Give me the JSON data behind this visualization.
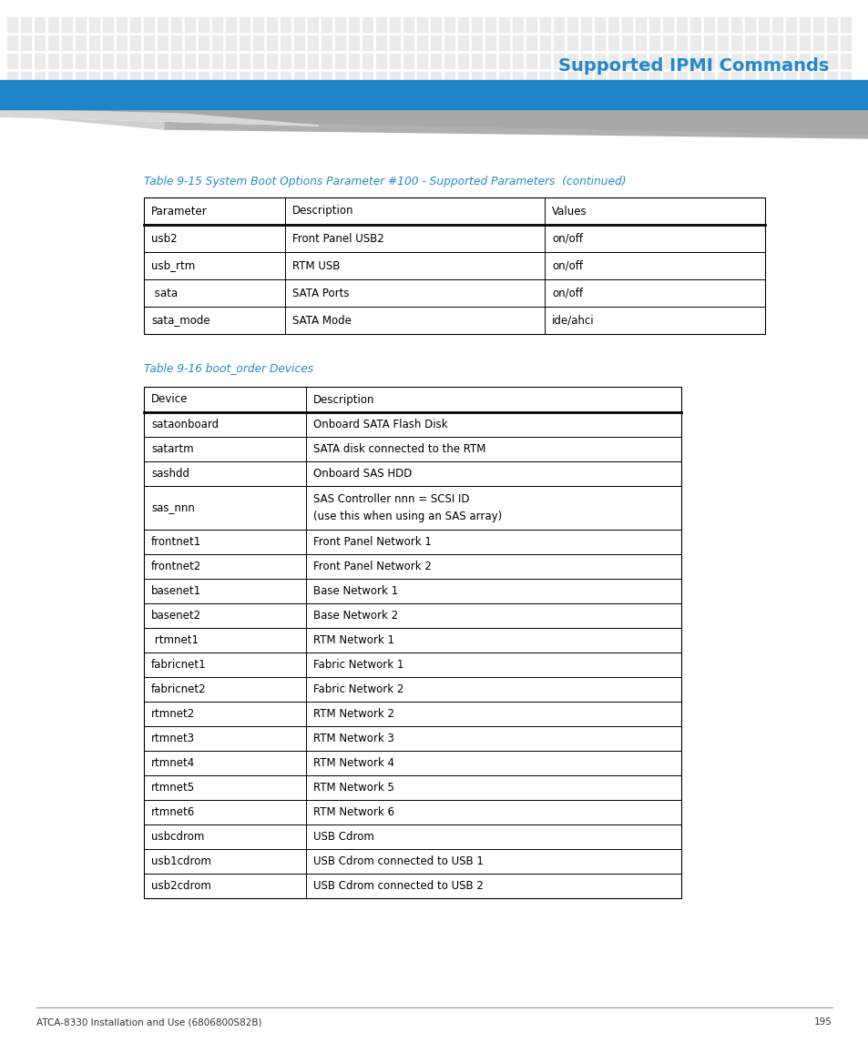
{
  "page_title": "Supported IPMI Commands",
  "page_title_color": "#2589C8",
  "header_bar_color": "#1E86C8",
  "dot_pattern_color": "#EBEBEB",
  "background_color": "#FFFFFF",
  "footer_text": "ATCA-8330 Installation and Use (6806800S82B)",
  "footer_page": "195",
  "table1_title": "Table 9-15 System Boot Options Parameter #100 - Supported Parameters  (continued)",
  "table1_title_color": "#2589C8",
  "table1_headers": [
    "Parameter",
    "Description",
    "Values"
  ],
  "table1_rows": [
    [
      "usb2",
      "Front Panel USB2",
      "on/off"
    ],
    [
      "usb_rtm",
      "RTM USB",
      "on/off"
    ],
    [
      " sata",
      "SATA Ports",
      "on/off"
    ],
    [
      "sata_mode",
      "SATA Mode",
      "ide/ahci"
    ]
  ],
  "table2_title": "Table 9-16 boot_order Devices",
  "table2_title_color": "#2589C8",
  "table2_headers": [
    "Device",
    "Description"
  ],
  "table2_rows": [
    [
      "sataonboard",
      "Onboard SATA Flash Disk"
    ],
    [
      "satartm",
      "SATA disk connected to the RTM"
    ],
    [
      "sashdd",
      "Onboard SAS HDD"
    ],
    [
      "sas_nnn",
      "SAS Controller nnn = SCSI ID\n(use this when using an SAS array)"
    ],
    [
      "frontnet1",
      "Front Panel Network 1"
    ],
    [
      "frontnet2",
      "Front Panel Network 2"
    ],
    [
      "basenet1",
      "Base Network 1"
    ],
    [
      "basenet2",
      "Base Network 2"
    ],
    [
      " rtmnet1",
      "RTM Network 1"
    ],
    [
      "fabricnet1",
      "Fabric Network 1"
    ],
    [
      "fabricnet2",
      "Fabric Network 2"
    ],
    [
      "rtmnet2",
      "RTM Network 2"
    ],
    [
      "rtmnet3",
      "RTM Network 3"
    ],
    [
      "rtmnet4",
      "RTM Network 4"
    ],
    [
      "rtmnet5",
      "RTM Network 5"
    ],
    [
      "rtmnet6",
      "RTM Network 6"
    ],
    [
      "usbcdrom",
      "USB Cdrom"
    ],
    [
      "usb1cdrom",
      "USB Cdrom connected to USB 1"
    ],
    [
      "usb2cdrom",
      "USB Cdrom connected to USB 2"
    ]
  ],
  "cell_text_color": "#000000",
  "cell_font_size": 8.5,
  "header_font_size": 8.5
}
